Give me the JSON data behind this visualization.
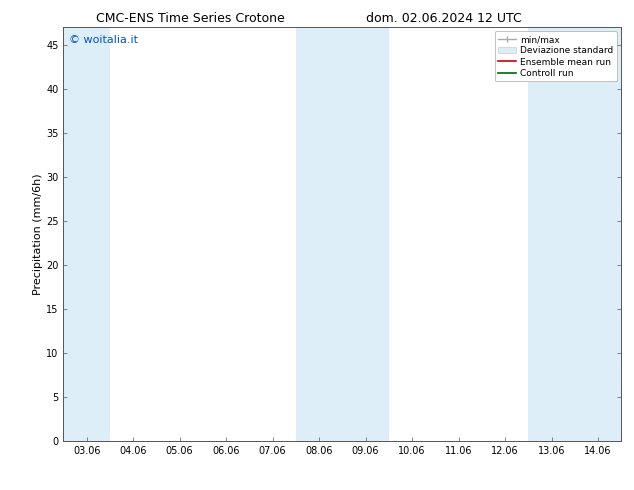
{
  "title_left": "CMC-ENS Time Series Crotone",
  "title_right": "dom. 02.06.2024 12 UTC",
  "ylabel": "Precipitation (mm/6h)",
  "watermark": "© woitalia.it",
  "x_tick_labels": [
    "03.06",
    "04.06",
    "05.06",
    "06.06",
    "07.06",
    "08.06",
    "09.06",
    "10.06",
    "11.06",
    "12.06",
    "13.06",
    "14.06"
  ],
  "x_tick_positions": [
    0,
    1,
    2,
    3,
    4,
    5,
    6,
    7,
    8,
    9,
    10,
    11
  ],
  "ylim": [
    0,
    47
  ],
  "yticks": [
    0,
    5,
    10,
    15,
    20,
    25,
    30,
    35,
    40,
    45
  ],
  "xlim": [
    -0.5,
    11.5
  ],
  "shaded_regions": [
    {
      "xmin": -0.5,
      "xmax": 0.5,
      "color": "#ddeef8"
    },
    {
      "xmin": 4.5,
      "xmax": 6.5,
      "color": "#ddeef8"
    },
    {
      "xmin": 9.5,
      "xmax": 11.5,
      "color": "#ddeef8"
    }
  ],
  "legend_labels": [
    "min/max",
    "Deviazione standard",
    "Ensemble mean run",
    "Controll run"
  ],
  "legend_colors": [
    "#aaaaaa",
    "#cccccc",
    "#cc0000",
    "#006600"
  ],
  "background_color": "#ffffff",
  "plot_bg_color": "#ffffff",
  "title_fontsize": 9,
  "tick_fontsize": 7,
  "ylabel_fontsize": 8,
  "watermark_color": "#0055cc",
  "watermark_fontsize": 8
}
